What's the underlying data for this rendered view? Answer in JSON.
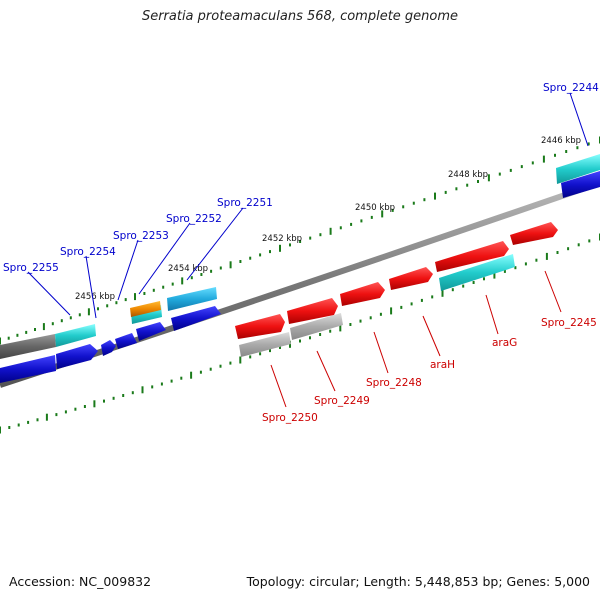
{
  "title": "Serratia proteamaculans 568, complete genome",
  "footer": {
    "accession": "Accession: NC_009832",
    "summary": "Topology: circular; Length: 5,448,853 bp; Genes: 5,000"
  },
  "colors": {
    "forward_gene": "#ee1111",
    "reverse_gene": "#1111cc",
    "top_label": "#0000cc",
    "bottom_label": "#cc0000",
    "backbone": "#888888",
    "tick": "#1a7a1a",
    "cyan_orf": "#22cccc",
    "grey_orf": "#aaaaaa",
    "orange_orf": "#ee8800"
  },
  "scale": {
    "kbp_labels": [
      "2446 kbp",
      "2448 kbp",
      "2450 kbp",
      "2452 kbp",
      "2454 kbp",
      "2456 kbp"
    ]
  },
  "genes_top": [
    "Spro_2244",
    "Spro_2251",
    "Spro_2252",
    "Spro_2253",
    "Spro_2254",
    "Spro_2255"
  ],
  "genes_bottom": [
    "Spro_2245",
    "araG",
    "araH",
    "Spro_2248",
    "Spro_2249",
    "Spro_2250"
  ]
}
